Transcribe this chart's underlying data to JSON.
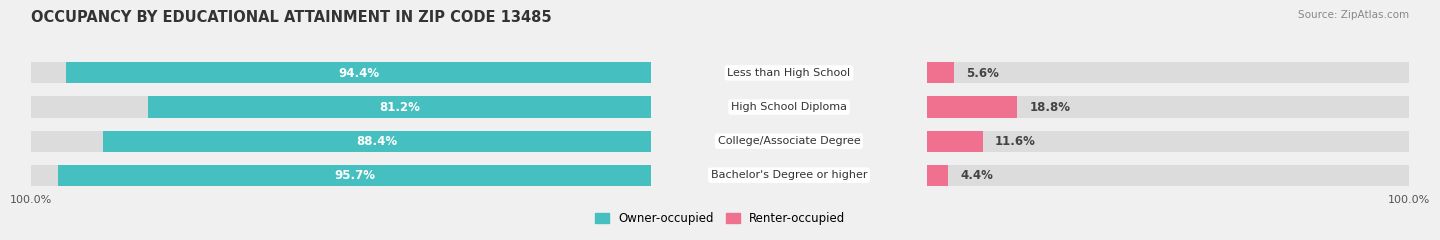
{
  "title": "OCCUPANCY BY EDUCATIONAL ATTAINMENT IN ZIP CODE 13485",
  "source": "Source: ZipAtlas.com",
  "categories": [
    "Less than High School",
    "High School Diploma",
    "College/Associate Degree",
    "Bachelor's Degree or higher"
  ],
  "owner_pct": [
    94.4,
    81.2,
    88.4,
    95.7
  ],
  "renter_pct": [
    5.6,
    18.8,
    11.6,
    4.4
  ],
  "owner_color": "#45bfbf",
  "renter_color": "#f07090",
  "bar_height": 0.62,
  "background_color": "#f0f0f0",
  "bar_bg_color": "#dcdcdc",
  "title_color": "#333333",
  "title_fontsize": 10.5,
  "bar_label_fontsize": 8.5,
  "legend_fontsize": 8.5,
  "source_fontsize": 7.5,
  "max_val": 100,
  "left_axis_label": "100.0%",
  "right_axis_label": "100.0%"
}
